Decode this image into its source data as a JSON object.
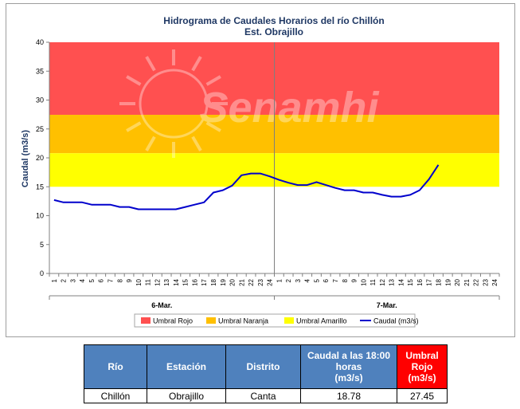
{
  "chart_data": {
    "type": "line",
    "title": "Hidrograma de Caudales Horarios del río Chillón",
    "subtitle": "Est. Obrajillo",
    "ylabel": "Caudal  (m3/s)",
    "ylim": [
      0,
      40
    ],
    "y_ticks": [
      0,
      5,
      10,
      15,
      20,
      25,
      30,
      35,
      40
    ],
    "x_tick_labels": [
      "1",
      "2",
      "3",
      "4",
      "5",
      "6",
      "7",
      "8",
      "9",
      "10",
      "11",
      "12",
      "13",
      "14",
      "15",
      "16",
      "17",
      "18",
      "19",
      "20",
      "21",
      "22",
      "23",
      "24",
      "1",
      "2",
      "3",
      "4",
      "5",
      "6",
      "7",
      "8",
      "9",
      "10",
      "11",
      "12",
      "13",
      "14",
      "15",
      "16",
      "17",
      "18",
      "19",
      "20",
      "21",
      "22",
      "23",
      "24"
    ],
    "day_labels": [
      "6-Mar.",
      "7-Mar."
    ],
    "bands": [
      {
        "name": "Umbral Rojo",
        "from": 27.45,
        "to": 40,
        "color": "#ff5050"
      },
      {
        "name": "Umbral Naranja",
        "from": 20.8,
        "to": 27.45,
        "color": "#ffc000"
      },
      {
        "name": "Umbral Amarillo",
        "from": 15,
        "to": 20.8,
        "color": "#ffff00"
      }
    ],
    "series": [
      {
        "name": "Caudal (m3/s)",
        "color": "#0000cc",
        "x": [
          1,
          2,
          3,
          4,
          5,
          6,
          7,
          8,
          9,
          10,
          11,
          12,
          13,
          14,
          15,
          16,
          17,
          18,
          19,
          20,
          21,
          22,
          23,
          24,
          25,
          26,
          27,
          28,
          29,
          30,
          31,
          32,
          33,
          34,
          35,
          36,
          37,
          38,
          39,
          40,
          41,
          42
        ],
        "values": [
          12.7,
          12.3,
          12.3,
          12.3,
          11.9,
          11.9,
          11.9,
          11.5,
          11.5,
          11.1,
          11.1,
          11.1,
          11.1,
          11.1,
          11.5,
          11.9,
          12.3,
          14.0,
          14.4,
          15.2,
          17.0,
          17.3,
          17.3,
          16.8,
          16.2,
          15.7,
          15.3,
          15.3,
          15.8,
          15.3,
          14.8,
          14.4,
          14.4,
          14.0,
          14.0,
          13.6,
          13.3,
          13.3,
          13.6,
          14.4,
          16.3,
          18.78
        ]
      }
    ],
    "legend": "bottom",
    "watermark": "Senamhi"
  },
  "table": {
    "headers": [
      {
        "label": "Río",
        "unit": ""
      },
      {
        "label": "Estación",
        "unit": ""
      },
      {
        "label": "Distrito",
        "unit": ""
      },
      {
        "label": "Caudal a las 18:00 horas",
        "unit": "(m3/s)"
      },
      {
        "label": "Umbral Rojo",
        "unit": "(m3/s)"
      }
    ],
    "rows": [
      [
        "Chillón",
        "Obrajillo",
        "Canta",
        "18.78",
        "27.45"
      ]
    ]
  }
}
